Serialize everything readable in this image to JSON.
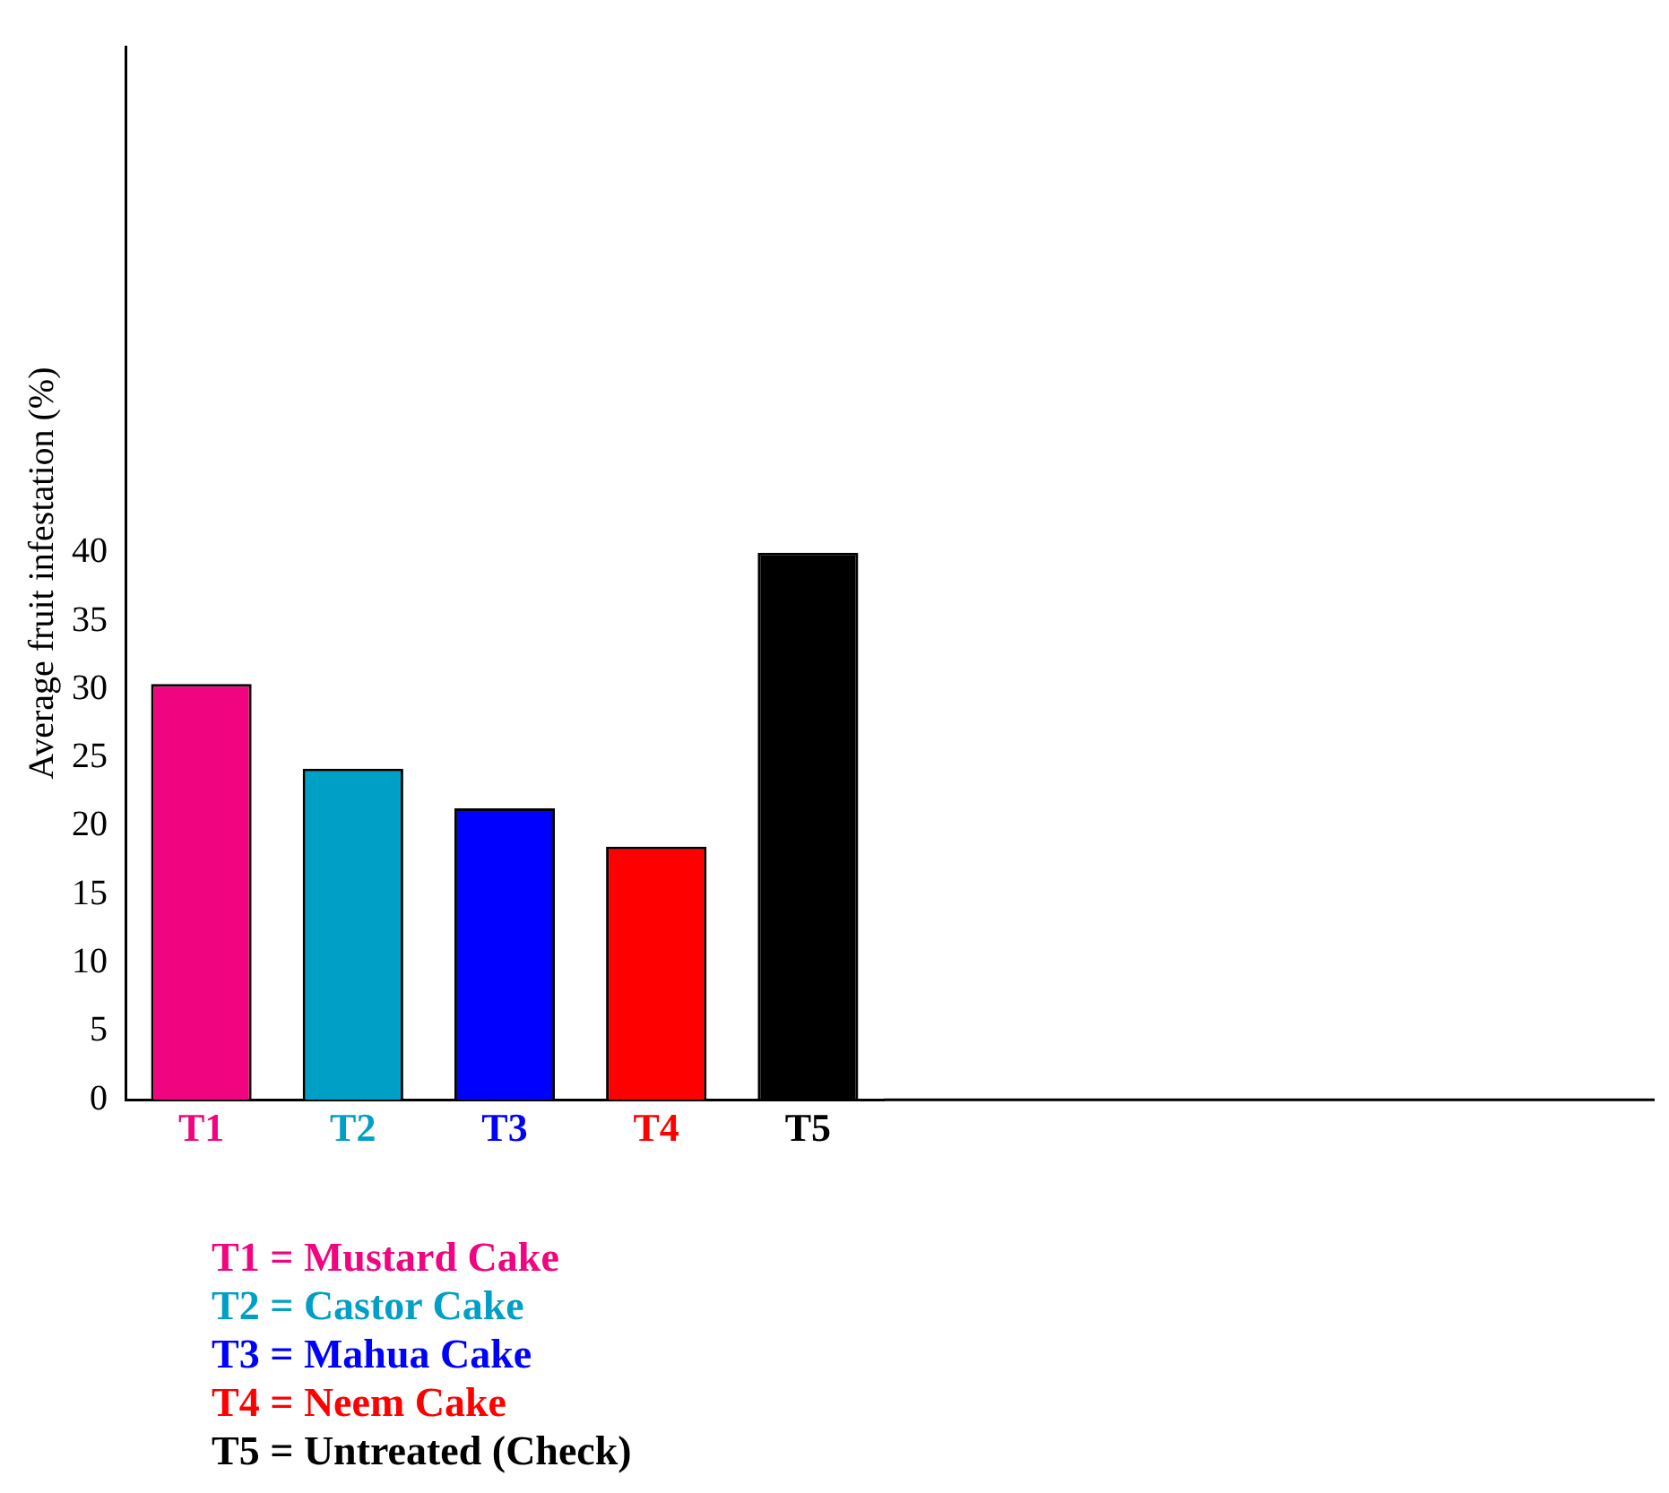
{
  "chart_data": {
    "type": "bar",
    "ylabel": "Average fruit infestation (%)",
    "categories": [
      "T1",
      "T2",
      "T3",
      "T4",
      "T5"
    ],
    "values": [
      30.4,
      24.2,
      21.3,
      18.5,
      40
    ],
    "colors": [
      "#f0047f",
      "#009fc6",
      "#0000ff",
      "#ff0000",
      "#000000"
    ],
    "ylim": [
      0,
      77
    ],
    "yticks": [
      0,
      5,
      10,
      15,
      20,
      25,
      30,
      35,
      40
    ],
    "grid": false,
    "legend": false,
    "annotations": [
      "T1 = Mustard Cake",
      "T2 = Castor Cake",
      "T3 = Mahua Cake",
      "T4 = Neem Cake",
      "T5 = Untreated (Check)"
    ]
  }
}
